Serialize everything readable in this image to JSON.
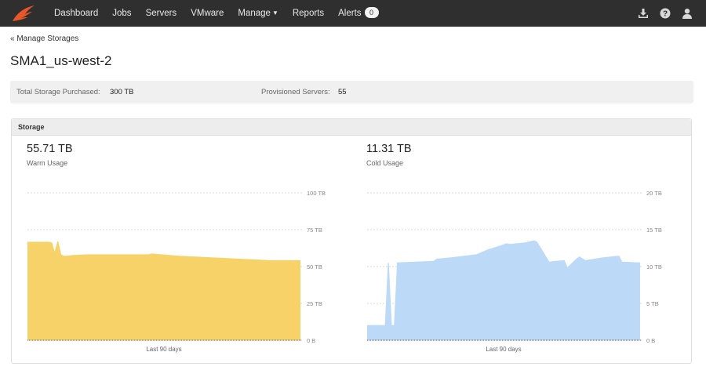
{
  "nav": {
    "items": [
      {
        "label": "Dashboard"
      },
      {
        "label": "Jobs"
      },
      {
        "label": "Servers"
      },
      {
        "label": "VMware"
      },
      {
        "label": "Manage",
        "dropdown": true
      },
      {
        "label": "Reports"
      },
      {
        "label": "Alerts",
        "badge": "0"
      }
    ],
    "icons": [
      "download-icon",
      "help-icon",
      "user-icon"
    ],
    "brand_color": "#e8572a"
  },
  "breadcrumb": "« Manage Storages",
  "page_title": "SMA1_us-west-2",
  "summary": {
    "total_label": "Total Storage Purchased:",
    "total_value": "300 TB",
    "servers_label": "Provisioned Servers:",
    "servers_value": "55"
  },
  "panel": {
    "title": "Storage",
    "warm": {
      "value": "55.71 TB",
      "label": "Warm Usage"
    },
    "cold": {
      "value": "11.31 TB",
      "label": "Cold Usage"
    }
  },
  "chart_data": [
    {
      "type": "area",
      "name": "Warm Usage",
      "color": "#f7d268",
      "xlabel": "Last 90 days",
      "ylim": [
        0,
        100
      ],
      "yticks": [
        "0 B",
        "25 TB",
        "50 TB",
        "75 TB",
        "100 TB"
      ],
      "x": [
        0,
        7,
        8,
        9,
        10,
        11,
        12,
        13,
        15,
        20,
        30,
        40,
        41,
        50,
        60,
        70,
        80,
        90
      ],
      "values": [
        66.5,
        66.5,
        66,
        59,
        67,
        58,
        57,
        57,
        57.5,
        58,
        58,
        58,
        58.5,
        57,
        56,
        55,
        54,
        54
      ]
    },
    {
      "type": "area",
      "name": "Cold Usage",
      "color": "#bcd9f8",
      "xlabel": "Last 90 days",
      "ylim": [
        0,
        20
      ],
      "yticks": [
        "0 B",
        "5 TB",
        "10 TB",
        "15 TB",
        "20 TB"
      ],
      "x": [
        0,
        6,
        7,
        8,
        9,
        10,
        22,
        23,
        28,
        36,
        40,
        44,
        46,
        47,
        52,
        55,
        56,
        60,
        62,
        65,
        66,
        69,
        70,
        72,
        75,
        78,
        83,
        84,
        90
      ],
      "values": [
        2,
        2,
        10.5,
        2,
        2,
        10.5,
        10.7,
        11,
        11.2,
        11.6,
        12.3,
        12.8,
        13.1,
        13,
        13.2,
        13.5,
        13.3,
        10.6,
        10.7,
        10.8,
        9.8,
        11,
        11.3,
        10.8,
        11,
        11.2,
        11.4,
        10.6,
        10.5
      ]
    }
  ]
}
